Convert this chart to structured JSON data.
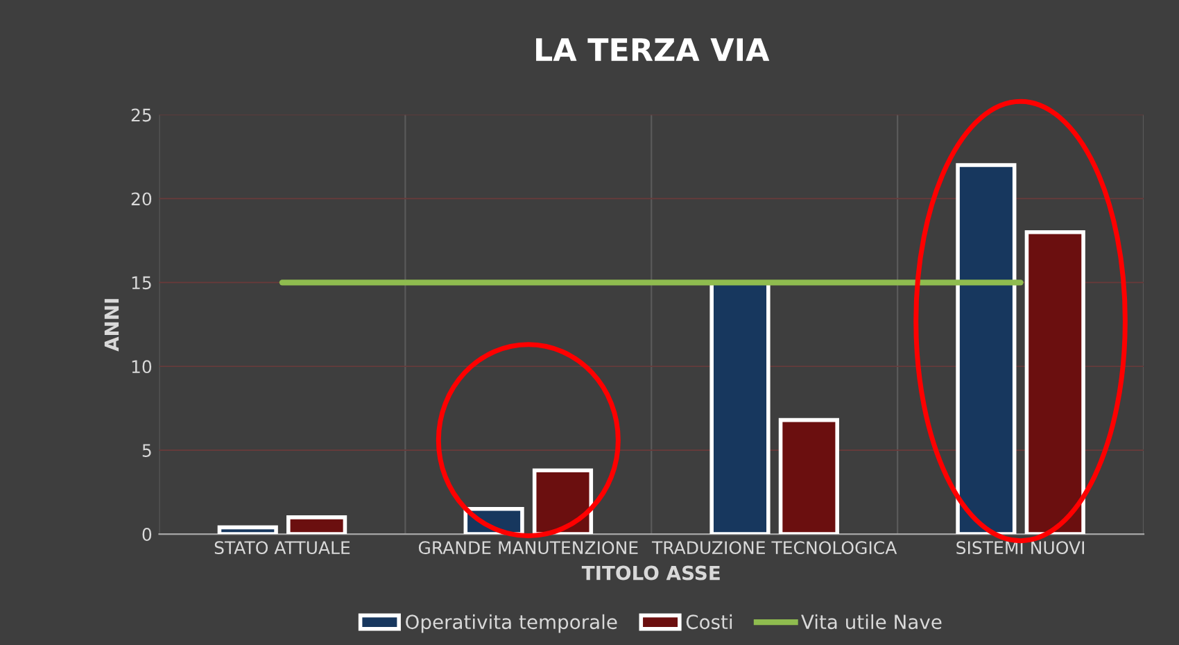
{
  "chart_data": {
    "type": "bar",
    "title": "LA TERZA VIA",
    "xlabel": "TITOLO ASSE",
    "ylabel": "ANNI",
    "categories": [
      "STATO ATTUALE",
      "GRANDE MANUTENZIONE",
      "TRADUZIONE TECNOLOGICA",
      "SISTEMI NUOVI"
    ],
    "series": [
      {
        "name": "Operativita temporale",
        "color": "#17375e",
        "values": [
          0.4,
          1.5,
          15,
          22
        ]
      },
      {
        "name": "Costi",
        "color": "#6b0f0f",
        "values": [
          1.0,
          3.8,
          6.8,
          18
        ]
      },
      {
        "name": "Vita utile Nave",
        "type": "line",
        "color": "#8fbc4f",
        "values": [
          15,
          15,
          15,
          15
        ]
      }
    ],
    "ylim": [
      0,
      25
    ],
    "yticks": [
      0,
      5,
      10,
      15,
      20,
      25
    ],
    "grid": true,
    "legend": "bottom",
    "marker": "none",
    "line_style": "solid"
  }
}
